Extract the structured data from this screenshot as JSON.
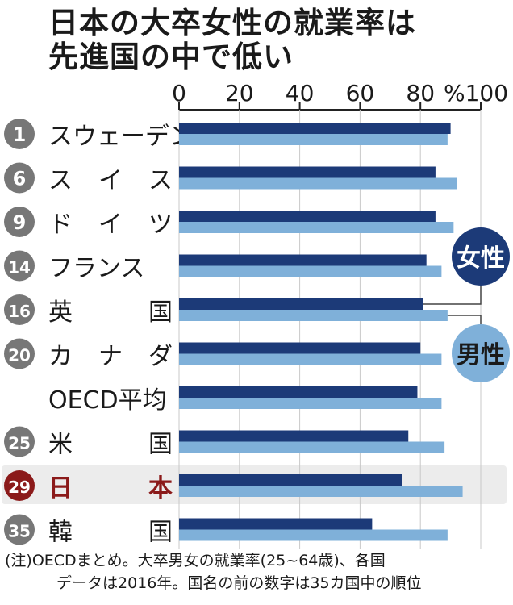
{
  "title_lines": [
    "日本の大卒女性の就業率は",
    "先進国の中で低い"
  ],
  "chart_data": {
    "type": "bar",
    "orientation": "horizontal",
    "title": "日本の大卒女性の就業率は先進国の中で低い",
    "xlim": [
      0,
      100
    ],
    "x_ticks": [
      "0",
      "20",
      "40",
      "60",
      "80",
      "%100"
    ],
    "grid": true,
    "categories": [
      {
        "rank": "1",
        "name": "スウェーデン"
      },
      {
        "rank": "6",
        "name": "ス イ ス"
      },
      {
        "rank": "9",
        "name": "ド イ ツ"
      },
      {
        "rank": "14",
        "name": "フランス"
      },
      {
        "rank": "16",
        "name": "英 国"
      },
      {
        "rank": "20",
        "name": "カ ナ ダ"
      },
      {
        "rank": "",
        "name": "OECD平均"
      },
      {
        "rank": "25",
        "name": "米 国"
      },
      {
        "rank": "29",
        "name": "日 本"
      },
      {
        "rank": "35",
        "name": "韓 国"
      }
    ],
    "highlight_index": 8,
    "series": [
      {
        "name": "女性",
        "color": "#1c3a78",
        "values": [
          90,
          85,
          85,
          82,
          81,
          80,
          79,
          76,
          74,
          64
        ]
      },
      {
        "name": "男性",
        "color": "#7fb0d9",
        "values": [
          89,
          92,
          91,
          87,
          89,
          87,
          87,
          88,
          94,
          89
        ]
      }
    ],
    "colors": {
      "rank_badge": "#777777",
      "highlight_badge": "#8b1a1a",
      "highlight_text": "#8b1a1a",
      "highlight_bg": "#ececec",
      "legend_bubble": "#1c3a78",
      "legend_bubble_light": "#7fb0d9"
    }
  },
  "note_lines": [
    "(注)OECDまとめ。大卒男女の就業率(25~64歳)、各国",
    "データは2016年。国名の前の数字は35カ国中の順位"
  ]
}
